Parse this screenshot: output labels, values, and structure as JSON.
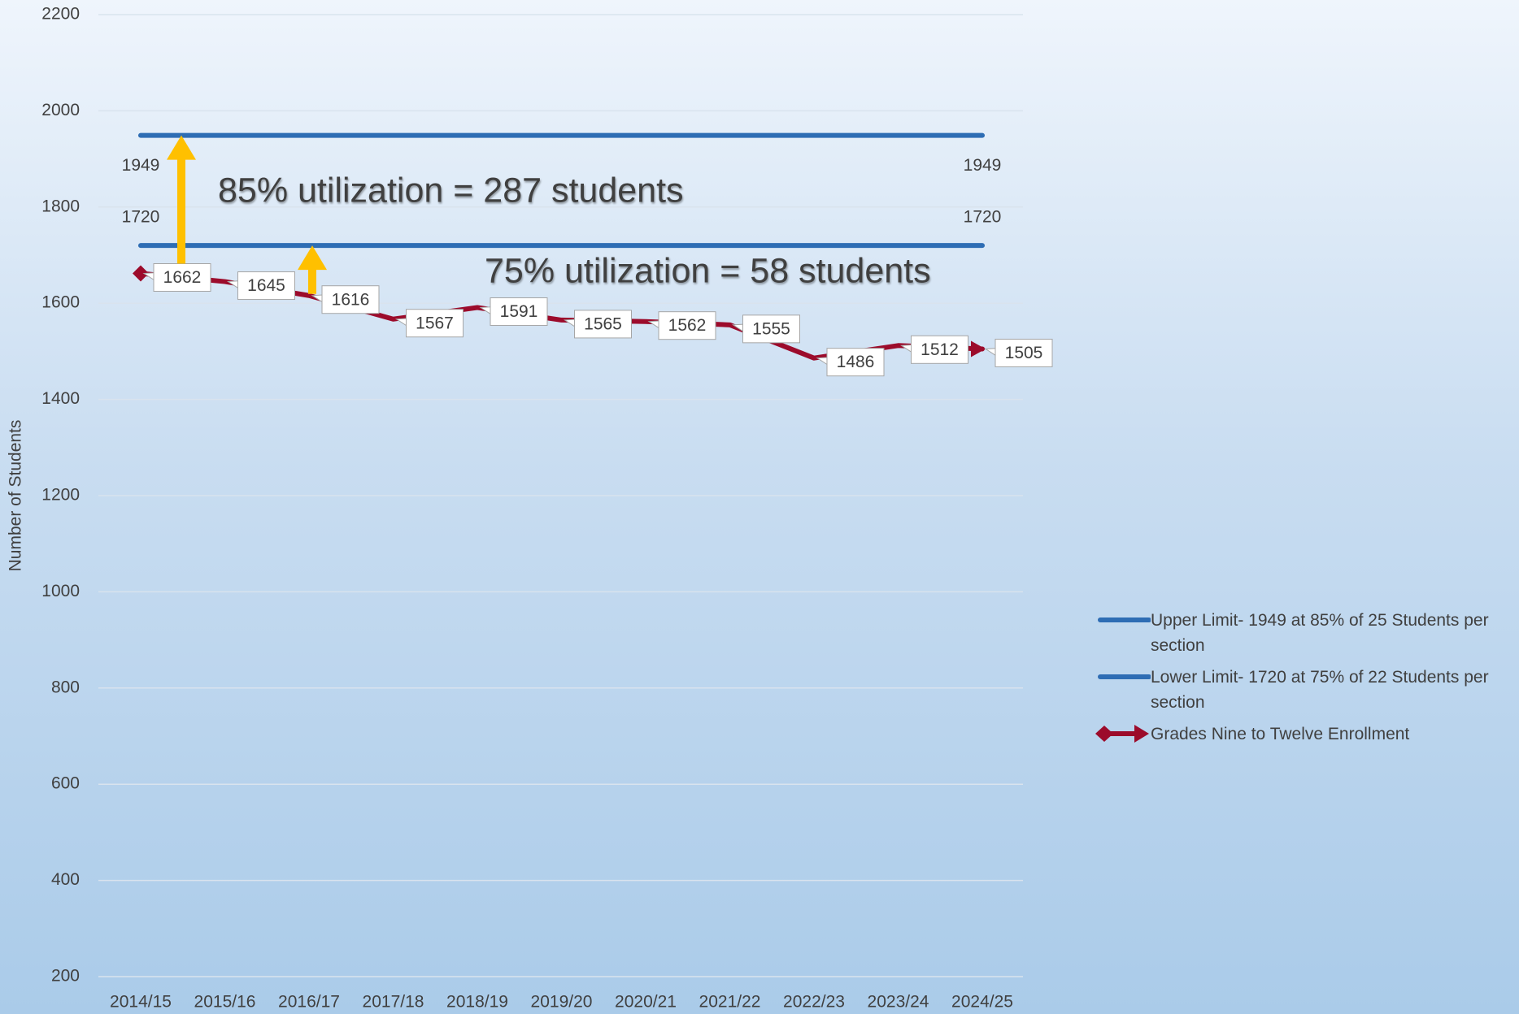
{
  "chart_data": {
    "type": "line",
    "y_label": "Number of Students",
    "categories": [
      "2014/15",
      "2015/16",
      "2016/17",
      "2017/18",
      "2018/19",
      "2019/20",
      "2020/21",
      "2021/22",
      "2022/23",
      "2023/24",
      "2024/25"
    ],
    "series": [
      {
        "name": "Upper Limit- 1949 at 85% of 25 Students per section",
        "color": "#2e6db4",
        "values": [
          1949,
          1949,
          1949,
          1949,
          1949,
          1949,
          1949,
          1949,
          1949,
          1949,
          1949
        ]
      },
      {
        "name": "Lower Limit- 1720 at 75% of 22 Students per section",
        "color": "#2e6db4",
        "values": [
          1720,
          1720,
          1720,
          1720,
          1720,
          1720,
          1720,
          1720,
          1720,
          1720,
          1720
        ]
      },
      {
        "name": "Grades Nine to Twelve Enrollment",
        "color": "#9c0b2b",
        "values": [
          1662,
          1645,
          1616,
          1567,
          1591,
          1565,
          1562,
          1555,
          1486,
          1512,
          1505
        ]
      }
    ],
    "annotations": [
      "85% utilization = 287 students",
      "75% utilization = 58 students"
    ],
    "ylim": [
      200,
      2200
    ],
    "yticks": [
      200,
      400,
      600,
      800,
      1000,
      1200,
      1400,
      1600,
      1800,
      2000,
      2200
    ],
    "grid": true
  }
}
